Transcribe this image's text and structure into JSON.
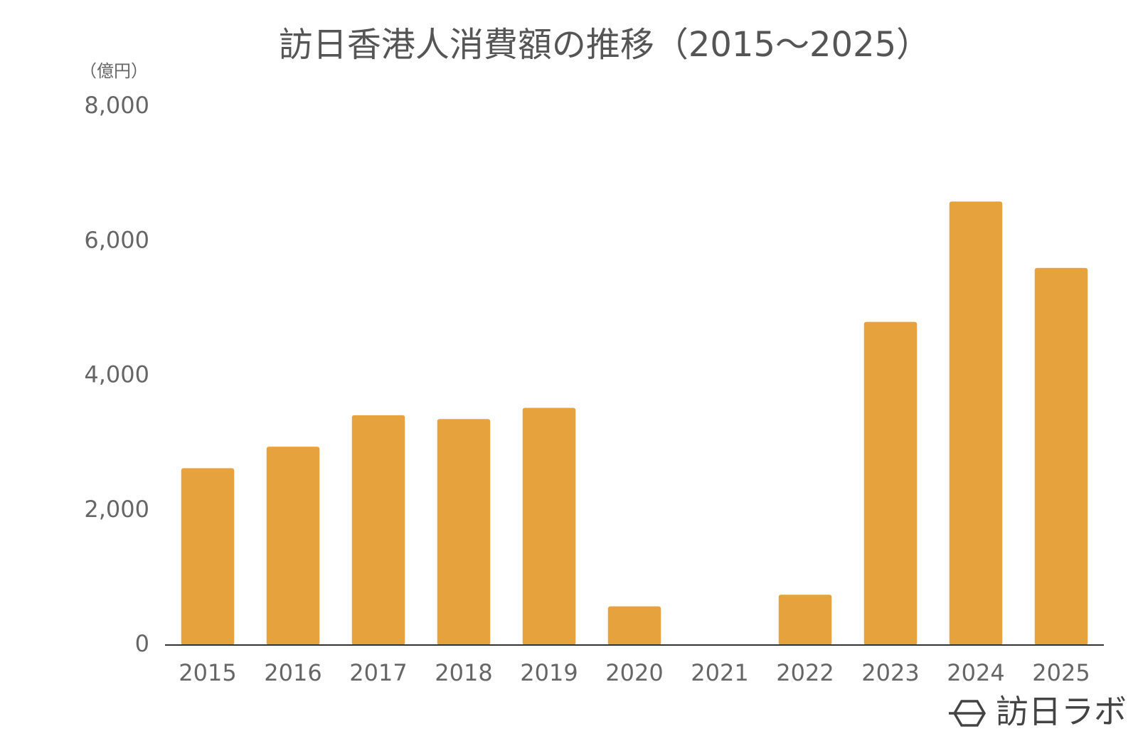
{
  "chart_data": {
    "type": "bar",
    "title": "訪日香港人消費額の推移（2015～2025）",
    "y_unit": "（億円）",
    "categories": [
      "2015",
      "2016",
      "2017",
      "2018",
      "2019",
      "2020",
      "2021",
      "2022",
      "2023",
      "2024",
      "2025"
    ],
    "values": [
      2627,
      2947,
      3415,
      3358,
      3525,
      574,
      0,
      748,
      4802,
      6591,
      5604
    ],
    "color": "#e6a23c",
    "ylim": [
      0,
      8000
    ],
    "yticks": [
      0,
      {
        "value": 2000,
        "label": "2,000"
      },
      {
        "value": 4000,
        "label": "4,000"
      },
      {
        "value": 6000,
        "label": "6,000"
      },
      {
        "value": 8000,
        "label": "8,000"
      }
    ],
    "grid": false,
    "source": "訪日ラボ"
  }
}
